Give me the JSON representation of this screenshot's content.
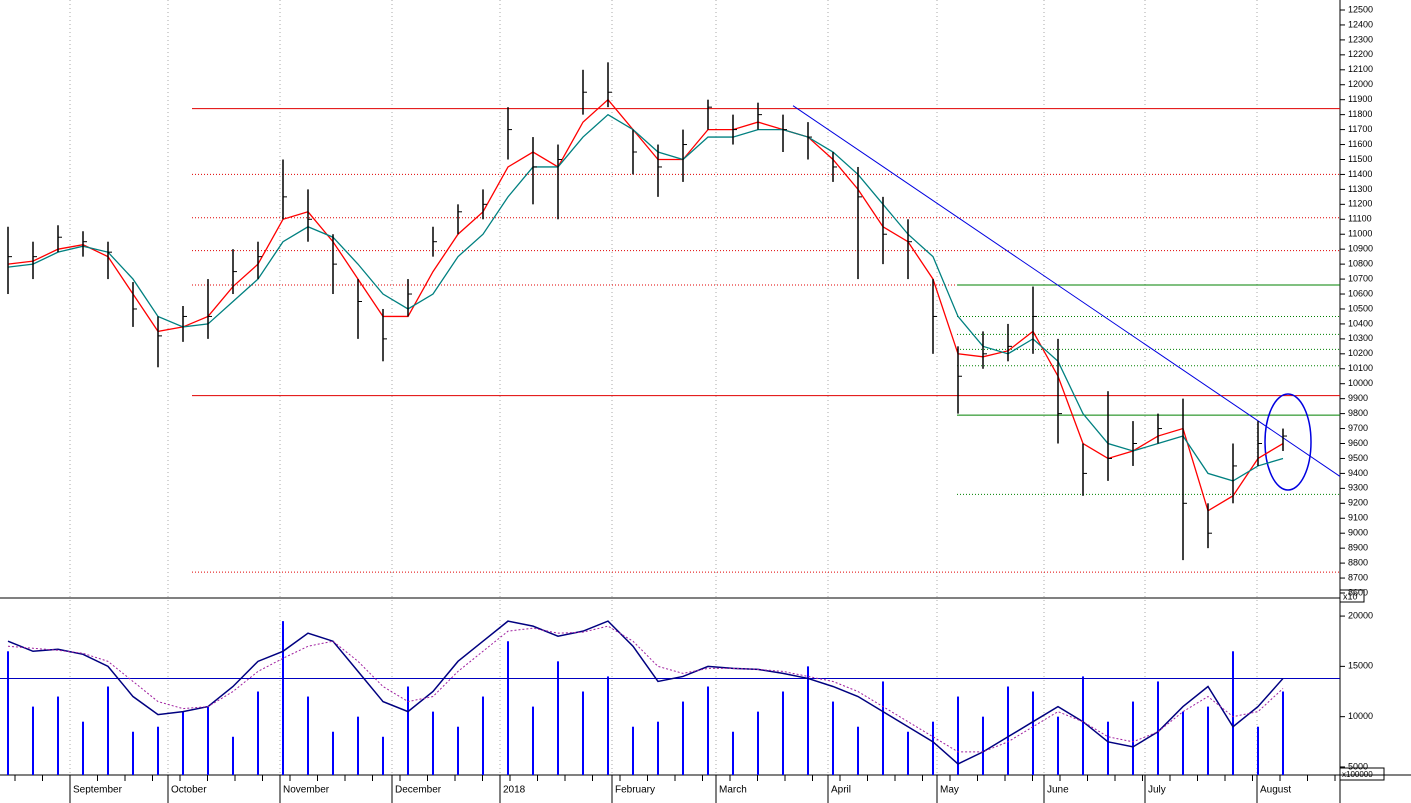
{
  "chart_data": {
    "type": "ohlc",
    "months": [
      "September",
      "October",
      "November",
      "December",
      "2018",
      "February",
      "March",
      "April",
      "May",
      "June",
      "July",
      "August"
    ],
    "high": [
      11050,
      10950,
      11060,
      11020,
      10950,
      10680,
      10450,
      10520,
      10700,
      10900,
      10950,
      11500,
      11300,
      11000,
      10700,
      10500,
      10700,
      11050,
      11200,
      11300,
      11850,
      11650,
      11600,
      12100,
      12150,
      11700,
      11600,
      11700,
      11900,
      11800,
      11880,
      11800,
      11750,
      11550,
      11450,
      11250,
      11100,
      10700,
      10250,
      10350,
      10400,
      10650,
      10300,
      9600,
      9950,
      9750,
      9800,
      9900,
      9200,
      9600,
      9750,
      9700
    ],
    "low": [
      10600,
      10700,
      10880,
      10850,
      10700,
      10380,
      10110,
      10280,
      10300,
      10600,
      10700,
      11100,
      10950,
      10600,
      10300,
      10150,
      10450,
      10850,
      11000,
      11100,
      11500,
      11200,
      11100,
      11800,
      11850,
      11400,
      11250,
      11350,
      11700,
      11600,
      11700,
      11550,
      11500,
      11350,
      10700,
      10800,
      10700,
      10200,
      9800,
      10100,
      10150,
      10200,
      9600,
      9250,
      9350,
      9450,
      9600,
      8820,
      8900,
      9200,
      9450,
      9550
    ],
    "close": [
      10850,
      10850,
      10980,
      10950,
      10880,
      10500,
      10320,
      10450,
      10450,
      10750,
      10850,
      11250,
      11100,
      10800,
      10550,
      10300,
      10600,
      10950,
      11150,
      11200,
      11700,
      11450,
      11500,
      11950,
      11950,
      11550,
      11450,
      11600,
      11850,
      11700,
      11800,
      11700,
      11650,
      11450,
      11250,
      11000,
      10950,
      10450,
      10050,
      10200,
      10250,
      10450,
      9800,
      9400,
      9500,
      9600,
      9700,
      9200,
      9000,
      9450,
      9600,
      9650
    ],
    "series": [
      {
        "name": "fast",
        "color": "#ff0000",
        "values": [
          10800,
          10820,
          10900,
          10930,
          10850,
          10600,
          10350,
          10380,
          10450,
          10650,
          10800,
          11100,
          11150,
          10950,
          10700,
          10450,
          10450,
          10750,
          11000,
          11150,
          11450,
          11550,
          11450,
          11750,
          11900,
          11700,
          11500,
          11500,
          11700,
          11700,
          11750,
          11700,
          11650,
          11500,
          11300,
          11050,
          10950,
          10700,
          10200,
          10180,
          10220,
          10350,
          10050,
          9600,
          9500,
          9550,
          9650,
          9700,
          9150,
          9250,
          9500,
          9600
        ]
      },
      {
        "name": "slow",
        "color": "#008080",
        "values": [
          10780,
          10800,
          10880,
          10920,
          10880,
          10700,
          10450,
          10380,
          10400,
          10550,
          10700,
          10950,
          11050,
          10980,
          10800,
          10600,
          10500,
          10600,
          10850,
          11000,
          11250,
          11450,
          11450,
          11650,
          11800,
          11700,
          11550,
          11500,
          11650,
          11650,
          11700,
          11700,
          11650,
          11550,
          11400,
          11200,
          11000,
          10850,
          10450,
          10250,
          10200,
          10300,
          10150,
          9800,
          9600,
          9550,
          9600,
          9650,
          9400,
          9350,
          9450,
          9500
        ]
      }
    ],
    "ylim": [
      8600,
      12500
    ],
    "yticks": [
      8600,
      8700,
      8800,
      8900,
      9000,
      9100,
      9200,
      9300,
      9400,
      9500,
      9600,
      9700,
      9800,
      9900,
      10000,
      10100,
      10200,
      10300,
      10400,
      10500,
      10600,
      10700,
      10800,
      10900,
      11000,
      11100,
      11200,
      11300,
      11400,
      11500,
      11600,
      11700,
      11800,
      11900,
      12000,
      12100,
      12200,
      12300,
      12400,
      12500
    ],
    "price_unit": "x10",
    "red_lines": [
      {
        "value": 11840,
        "dashed": false
      },
      {
        "value": 11400,
        "dashed": true
      },
      {
        "value": 11110,
        "dashed": true
      },
      {
        "value": 10890,
        "dashed": true
      },
      {
        "value": 10660,
        "dashed": true
      },
      {
        "value": 9920,
        "dashed": false
      },
      {
        "value": 8740,
        "dashed": true
      }
    ],
    "green_lines": [
      {
        "value": 10660,
        "dashed": false
      },
      {
        "value": 10450,
        "dashed": true
      },
      {
        "value": 10330,
        "dashed": true
      },
      {
        "value": 10230,
        "dashed": true
      },
      {
        "value": 10120,
        "dashed": true
      },
      {
        "value": 9790,
        "dashed": false
      },
      {
        "value": 9260,
        "dashed": true
      }
    ],
    "trendline": [
      11860,
      9380
    ],
    "volume": {
      "values": [
        16500,
        11000,
        12000,
        9500,
        13000,
        8500,
        9000,
        10500,
        11000,
        8000,
        12500,
        19500,
        12000,
        8500,
        10000,
        8000,
        13000,
        10500,
        9000,
        12000,
        17500,
        11000,
        15500,
        12500,
        14000,
        9000,
        9500,
        11500,
        13000,
        8500,
        10500,
        12500,
        15000,
        11500,
        9000,
        13500,
        8500,
        9500,
        12000,
        10000,
        13000,
        12500,
        10000,
        14000,
        9500,
        11500,
        13500,
        10500,
        11000,
        16500,
        9000,
        12500
      ],
      "color": "#0000ff",
      "series": [
        {
          "name": "volume-line",
          "color": "#000080",
          "values": [
            17500,
            16500,
            16700,
            16200,
            15000,
            12000,
            10200,
            10500,
            11000,
            13000,
            15500,
            16500,
            18300,
            17500,
            14500,
            11500,
            10500,
            12500,
            15500,
            17500,
            19500,
            19000,
            18000,
            18500,
            19500,
            17000,
            13500,
            14000,
            15000,
            14800,
            14700,
            14300,
            13800,
            13000,
            12000,
            10500,
            9000,
            7500,
            5300,
            6500,
            8000,
            9500,
            11000,
            9500,
            7500,
            7000,
            8500,
            11000,
            13000,
            9000,
            11000,
            13800
          ]
        },
        {
          "name": "volume-signal",
          "color": "#a020a0",
          "values": [
            17000,
            16800,
            16600,
            16300,
            15500,
            13500,
            11500,
            10800,
            11000,
            12500,
            14500,
            15800,
            17000,
            17500,
            15500,
            13000,
            11500,
            12000,
            14500,
            16500,
            18500,
            18800,
            18300,
            18400,
            19000,
            17500,
            15000,
            14300,
            14800,
            14800,
            14700,
            14500,
            14000,
            13500,
            12500,
            11000,
            9500,
            8000,
            6500,
            6500,
            7500,
            9000,
            10500,
            9500,
            8000,
            7500,
            8500,
            10500,
            12000,
            10000,
            10500,
            12800
          ]
        }
      ],
      "level": 13800,
      "ylim": [
        4200,
        21300
      ],
      "yticks": [
        5000,
        10000,
        15000,
        20000
      ],
      "unit": "x100000"
    }
  }
}
